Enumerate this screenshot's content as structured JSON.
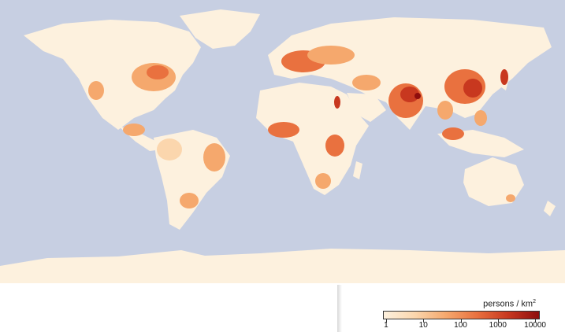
{
  "map": {
    "ocean_color": "#c7cfe2",
    "land_color": "#fdf1de",
    "density_colors": [
      "#fdf1de",
      "#fbd6ad",
      "#f5a86d",
      "#e9713f",
      "#c8381f",
      "#8e0d0d"
    ]
  },
  "legend": {
    "title_prefix": "persons / km",
    "title_superscript": "2",
    "ticks": [
      "1",
      "10",
      "100",
      "1000",
      "10000"
    ]
  }
}
